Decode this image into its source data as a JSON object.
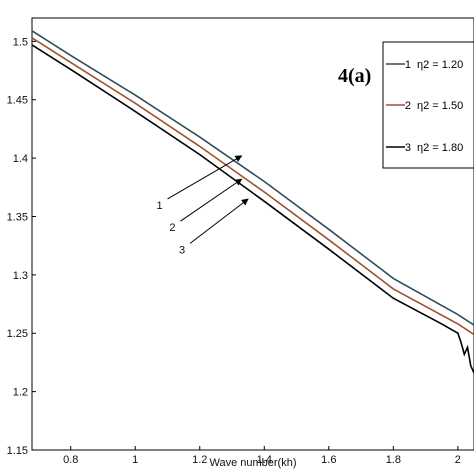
{
  "chart_data": {
    "type": "line",
    "panel_label": "4(a)",
    "title": "",
    "xlabel": "Wave number(kh)",
    "ylabel": "",
    "xlim": [
      0.68,
      2.05
    ],
    "ylim": [
      1.15,
      1.52
    ],
    "xticks": [
      "0.8",
      "1",
      "1.2",
      "1.4",
      "1.6",
      "1.8",
      "2"
    ],
    "yticks": [
      "1.15",
      "1.2",
      "1.25",
      "1.3",
      "1.35",
      "1.4",
      "1.45",
      "1.5"
    ],
    "series": [
      {
        "name": "1 η2 = 1.20",
        "color": "#2f4f5f",
        "x": [
          0.68,
          0.8,
          1.0,
          1.2,
          1.4,
          1.6,
          1.8,
          2.0,
          2.05
        ],
        "y": [
          1.509,
          1.488,
          1.454,
          1.418,
          1.38,
          1.339,
          1.297,
          1.266,
          1.257
        ]
      },
      {
        "name": "2 η2 = 1.50",
        "color": "#a0522d",
        "x": [
          0.68,
          0.8,
          1.0,
          1.2,
          1.4,
          1.6,
          1.8,
          2.0,
          2.05
        ],
        "y": [
          1.503,
          1.482,
          1.447,
          1.41,
          1.371,
          1.33,
          1.288,
          1.258,
          1.249
        ]
      },
      {
        "name": "3 η2 = 1.80",
        "color": "#000000",
        "x": [
          0.68,
          0.8,
          1.0,
          1.2,
          1.4,
          1.6,
          1.8,
          1.95,
          2.0,
          2.01,
          2.02,
          2.03,
          2.04,
          2.05
        ],
        "y": [
          1.497,
          1.476,
          1.44,
          1.403,
          1.363,
          1.322,
          1.28,
          1.258,
          1.25,
          1.242,
          1.232,
          1.238,
          1.222,
          1.216
        ]
      }
    ],
    "annotations": [
      {
        "label": "1",
        "x0": 1.1,
        "y0": 1.365,
        "x1": 1.33,
        "y1": 1.402
      },
      {
        "label": "2",
        "x0": 1.14,
        "y0": 1.346,
        "x1": 1.33,
        "y1": 1.382
      },
      {
        "label": "3",
        "x0": 1.17,
        "y0": 1.327,
        "x1": 1.35,
        "y1": 1.365
      }
    ],
    "legend": {
      "position": "top-right",
      "entries": [
        {
          "num": "1",
          "text": "η2 = 1.20",
          "color": "#2f4f5f"
        },
        {
          "num": "2",
          "text": "η2 = 1.50",
          "color": "#a0522d"
        },
        {
          "num": "3",
          "text": "η2 = 1.80",
          "color": "#000000"
        }
      ]
    },
    "grid": false
  }
}
